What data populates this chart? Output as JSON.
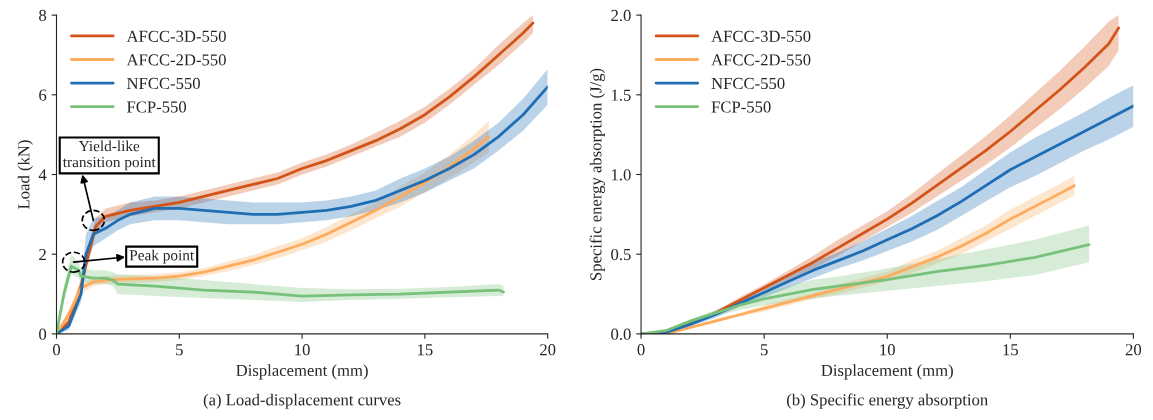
{
  "chart_data": [
    {
      "type": "line",
      "title": "(a) Load-displacement curves",
      "xlabel": "Displacement (mm)",
      "ylabel": "Load (kN)",
      "xlim": [
        0,
        20
      ],
      "ylim": [
        0,
        8
      ],
      "xticks": [
        0,
        5,
        10,
        15,
        20
      ],
      "yticks": [
        0,
        2,
        4,
        6,
        8
      ],
      "legend": "top left",
      "series": [
        {
          "name": "AFCC-3D-550",
          "color": "#d35418",
          "x": [
            0,
            0.5,
            1,
            1.3,
            1.6,
            2,
            3,
            4,
            5,
            6,
            7,
            8,
            9,
            10,
            11,
            12,
            13,
            14,
            15,
            16,
            17,
            18,
            19,
            19.4
          ],
          "values": [
            0,
            0.3,
            1.2,
            2.0,
            2.7,
            2.95,
            3.1,
            3.2,
            3.3,
            3.45,
            3.6,
            3.75,
            3.9,
            4.15,
            4.35,
            4.6,
            4.85,
            5.15,
            5.5,
            5.95,
            6.45,
            7.0,
            7.55,
            7.8
          ],
          "lower": [
            0,
            0.2,
            1.0,
            1.8,
            2.5,
            2.8,
            2.95,
            3.05,
            3.15,
            3.3,
            3.45,
            3.6,
            3.75,
            4.0,
            4.2,
            4.45,
            4.7,
            4.95,
            5.3,
            5.75,
            6.25,
            6.75,
            7.3,
            7.55
          ],
          "upper": [
            0,
            0.4,
            1.4,
            2.2,
            2.9,
            3.15,
            3.3,
            3.35,
            3.45,
            3.6,
            3.75,
            3.9,
            4.05,
            4.3,
            4.5,
            4.75,
            5.05,
            5.35,
            5.7,
            6.15,
            6.65,
            7.25,
            7.8,
            8.0
          ]
        },
        {
          "name": "AFCC-2D-550",
          "color": "#fdab5c",
          "x": [
            0,
            0.5,
            1,
            1.5,
            2,
            3,
            4,
            5,
            6,
            7,
            8,
            9,
            10,
            11,
            12,
            13,
            14,
            15,
            16,
            17,
            17.6
          ],
          "values": [
            0,
            0.5,
            1.15,
            1.3,
            1.35,
            1.38,
            1.4,
            1.45,
            1.55,
            1.7,
            1.85,
            2.05,
            2.25,
            2.5,
            2.8,
            3.1,
            3.45,
            3.8,
            4.2,
            4.65,
            4.95
          ],
          "lower": [
            0,
            0.4,
            1.0,
            1.2,
            1.25,
            1.28,
            1.3,
            1.35,
            1.45,
            1.58,
            1.72,
            1.9,
            2.1,
            2.32,
            2.6,
            2.9,
            3.2,
            3.55,
            3.9,
            4.3,
            4.55
          ],
          "upper": [
            0,
            0.6,
            1.3,
            1.4,
            1.45,
            1.48,
            1.5,
            1.55,
            1.65,
            1.82,
            1.98,
            2.2,
            2.4,
            2.68,
            3.0,
            3.3,
            3.7,
            4.05,
            4.5,
            5.0,
            5.35
          ]
        },
        {
          "name": "NFCC-550",
          "color": "#1f6db3",
          "x": [
            0,
            0.5,
            1,
            1.2,
            1.5,
            2,
            2.5,
            3,
            4,
            5,
            6,
            7,
            8,
            9,
            10,
            11,
            12,
            13,
            14,
            15,
            16,
            17,
            18,
            19,
            20
          ],
          "values": [
            0,
            0.2,
            1.0,
            2.0,
            2.5,
            2.65,
            2.85,
            3.0,
            3.15,
            3.15,
            3.1,
            3.05,
            3.0,
            3.0,
            3.05,
            3.1,
            3.2,
            3.35,
            3.6,
            3.85,
            4.15,
            4.5,
            4.95,
            5.5,
            6.2
          ],
          "lower": [
            0,
            0.1,
            0.8,
            1.7,
            2.2,
            2.4,
            2.6,
            2.75,
            2.85,
            2.85,
            2.8,
            2.75,
            2.75,
            2.75,
            2.8,
            2.85,
            2.95,
            3.1,
            3.3,
            3.55,
            3.85,
            4.15,
            4.6,
            5.1,
            5.75
          ],
          "upper": [
            0,
            0.3,
            1.3,
            2.5,
            2.9,
            2.95,
            3.1,
            3.3,
            3.45,
            3.45,
            3.4,
            3.35,
            3.3,
            3.3,
            3.3,
            3.35,
            3.45,
            3.6,
            3.9,
            4.15,
            4.45,
            4.85,
            5.3,
            5.9,
            6.65
          ]
        },
        {
          "name": "FCP-550",
          "color": "#77c17a",
          "x": [
            0,
            0.3,
            0.6,
            0.9,
            1,
            1.5,
            2,
            2.3,
            2.5,
            4,
            6,
            8,
            10,
            12,
            14,
            16,
            18,
            18.2
          ],
          "values": [
            0,
            1.0,
            1.7,
            1.6,
            1.45,
            1.4,
            1.4,
            1.35,
            1.25,
            1.2,
            1.1,
            1.05,
            0.95,
            0.98,
            1.0,
            1.05,
            1.1,
            1.05
          ],
          "lower": [
            0,
            0.8,
            1.5,
            1.4,
            1.3,
            1.25,
            1.25,
            1.2,
            1.0,
            0.95,
            0.9,
            0.85,
            0.8,
            0.85,
            0.88,
            0.92,
            0.95,
            0.95
          ],
          "upper": [
            0,
            1.2,
            2.0,
            1.8,
            1.65,
            1.6,
            1.6,
            1.55,
            1.5,
            1.45,
            1.35,
            1.25,
            1.15,
            1.12,
            1.13,
            1.18,
            1.25,
            1.2
          ]
        }
      ],
      "annotations": [
        {
          "text": "Yield-like\ntransition point",
          "x": 1.5,
          "y": 2.85
        },
        {
          "text": "Peak point",
          "x": 0.7,
          "y": 1.8
        }
      ]
    },
    {
      "type": "line",
      "title": "(b) Specific energy absorption",
      "xlabel": "Displacement (mm)",
      "ylabel": "Specific energy absorption (J/g)",
      "xlim": [
        0,
        20
      ],
      "ylim": [
        0,
        2
      ],
      "xticks": [
        0,
        5,
        10,
        15,
        20
      ],
      "yticks": [
        {
          "value": 0,
          "label": "0.0"
        },
        {
          "value": 0.5,
          "label": "0.5"
        },
        {
          "value": 1,
          "label": "1.0"
        },
        {
          "value": 1.5,
          "label": "1.5"
        },
        {
          "value": 2,
          "label": "2.0"
        }
      ],
      "legend": "top left",
      "series": [
        {
          "name": "AFCC-3D-550",
          "color": "#d35418",
          "x": [
            0,
            1,
            2,
            3,
            4,
            5,
            6,
            7,
            8,
            9,
            10,
            11,
            12,
            13,
            14,
            15,
            16,
            17,
            18,
            19,
            19.4
          ],
          "values": [
            0,
            0.01,
            0.07,
            0.13,
            0.21,
            0.29,
            0.37,
            0.45,
            0.54,
            0.63,
            0.72,
            0.82,
            0.93,
            1.04,
            1.15,
            1.27,
            1.4,
            1.53,
            1.67,
            1.82,
            1.92
          ],
          "lower": [
            0,
            0.01,
            0.06,
            0.12,
            0.19,
            0.27,
            0.34,
            0.41,
            0.49,
            0.58,
            0.67,
            0.76,
            0.86,
            0.96,
            1.06,
            1.17,
            1.29,
            1.41,
            1.54,
            1.68,
            1.78
          ],
          "upper": [
            0,
            0.01,
            0.08,
            0.14,
            0.23,
            0.31,
            0.4,
            0.49,
            0.59,
            0.68,
            0.77,
            0.88,
            1.0,
            1.12,
            1.24,
            1.37,
            1.51,
            1.65,
            1.8,
            1.96,
            2.0
          ]
        },
        {
          "name": "AFCC-2D-550",
          "color": "#fdab5c",
          "x": [
            0,
            1,
            2,
            3,
            4,
            5,
            6,
            7,
            8,
            9,
            10,
            11,
            12,
            13,
            14,
            15,
            16,
            17,
            17.6
          ],
          "values": [
            0,
            0.0,
            0.04,
            0.08,
            0.12,
            0.16,
            0.2,
            0.24,
            0.28,
            0.32,
            0.36,
            0.42,
            0.48,
            0.55,
            0.63,
            0.72,
            0.8,
            0.88,
            0.93
          ],
          "lower": [
            0,
            0.0,
            0.03,
            0.07,
            0.11,
            0.14,
            0.18,
            0.22,
            0.25,
            0.29,
            0.33,
            0.38,
            0.44,
            0.5,
            0.58,
            0.66,
            0.74,
            0.82,
            0.87
          ],
          "upper": [
            0,
            0.0,
            0.05,
            0.09,
            0.13,
            0.18,
            0.22,
            0.26,
            0.31,
            0.35,
            0.39,
            0.46,
            0.52,
            0.6,
            0.68,
            0.78,
            0.86,
            0.94,
            0.99
          ]
        },
        {
          "name": "NFCC-550",
          "color": "#1f6db3",
          "x": [
            0,
            0.7,
            1,
            2,
            3,
            4,
            5,
            6,
            7,
            8,
            9,
            10,
            11,
            12,
            13,
            14,
            15,
            16,
            17,
            18,
            19,
            20
          ],
          "values": [
            0,
            0,
            0.01,
            0.06,
            0.12,
            0.19,
            0.26,
            0.33,
            0.4,
            0.46,
            0.52,
            0.59,
            0.66,
            0.74,
            0.83,
            0.93,
            1.03,
            1.11,
            1.19,
            1.27,
            1.35,
            1.43
          ],
          "lower": [
            0,
            0,
            0.01,
            0.05,
            0.1,
            0.17,
            0.23,
            0.29,
            0.35,
            0.41,
            0.46,
            0.52,
            0.58,
            0.65,
            0.74,
            0.83,
            0.92,
            0.99,
            1.07,
            1.15,
            1.22,
            1.3
          ],
          "upper": [
            0,
            0,
            0.01,
            0.07,
            0.14,
            0.21,
            0.29,
            0.37,
            0.45,
            0.51,
            0.58,
            0.66,
            0.74,
            0.83,
            0.92,
            1.03,
            1.14,
            1.23,
            1.31,
            1.39,
            1.48,
            1.56
          ]
        },
        {
          "name": "FCP-550",
          "color": "#77c17a",
          "x": [
            0,
            1,
            2,
            3,
            4,
            5,
            6,
            7,
            8,
            10,
            12,
            14,
            16,
            18.2
          ],
          "values": [
            0,
            0.02,
            0.08,
            0.13,
            0.18,
            0.22,
            0.25,
            0.28,
            0.3,
            0.34,
            0.39,
            0.43,
            0.48,
            0.56
          ],
          "lower": [
            0,
            0.02,
            0.07,
            0.11,
            0.15,
            0.18,
            0.2,
            0.22,
            0.24,
            0.27,
            0.3,
            0.33,
            0.37,
            0.45
          ],
          "upper": [
            0,
            0.02,
            0.09,
            0.15,
            0.21,
            0.26,
            0.3,
            0.34,
            0.36,
            0.41,
            0.47,
            0.53,
            0.59,
            0.68
          ]
        }
      ]
    }
  ]
}
